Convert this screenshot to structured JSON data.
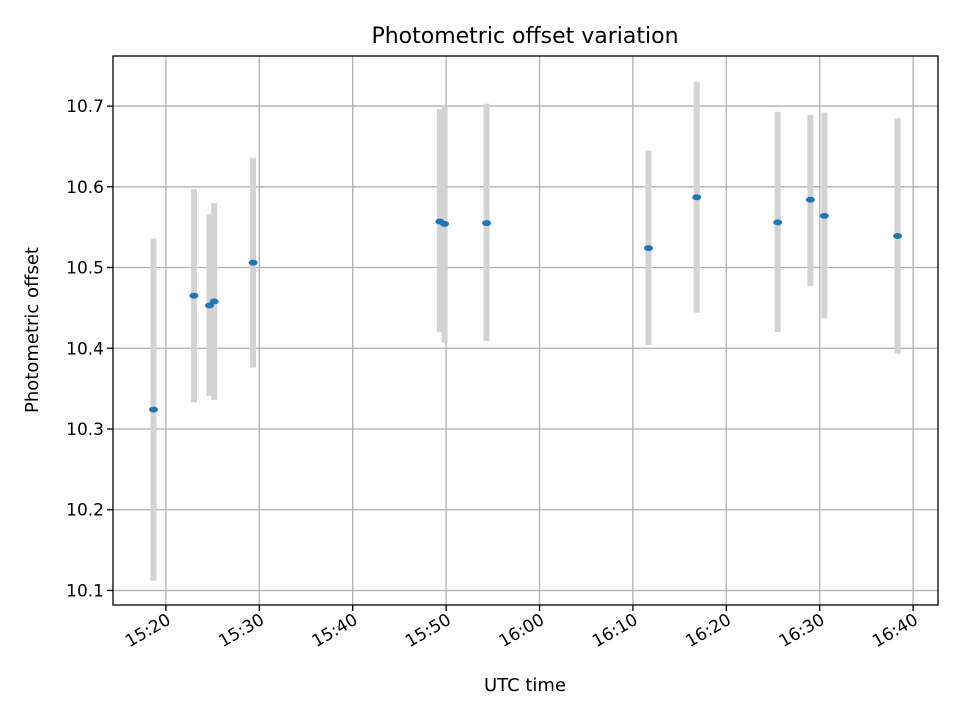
{
  "chart_data": {
    "type": "scatter",
    "title": "Photometric offset variation",
    "xlabel": "UTC time",
    "ylabel": "Photometric offset",
    "xlim": [
      "15:14:20",
      "16:42:40"
    ],
    "ylim": [
      10.082,
      10.762
    ],
    "grid": true,
    "x_ticks": [
      "15:20",
      "15:30",
      "15:40",
      "15:50",
      "16:00",
      "16:10",
      "16:20",
      "16:30",
      "16:40"
    ],
    "y_ticks": [
      "10.1",
      "10.2",
      "10.3",
      "10.4",
      "10.5",
      "10.6",
      "10.7"
    ],
    "colors": {
      "marker": "#1f77b4",
      "errorbar": "#d3d3d3",
      "grid": "#b0b0b0"
    },
    "points": [
      {
        "x": "15:18:40",
        "y": 10.324,
        "yerr_low": 10.112,
        "yerr_high": 10.536
      },
      {
        "x": "15:23:00",
        "y": 10.465,
        "yerr_low": 10.333,
        "yerr_high": 10.597
      },
      {
        "x": "15:24:40",
        "y": 10.453,
        "yerr_low": 10.341,
        "yerr_high": 10.566
      },
      {
        "x": "15:25:10",
        "y": 10.458,
        "yerr_low": 10.336,
        "yerr_high": 10.58
      },
      {
        "x": "15:29:20",
        "y": 10.506,
        "yerr_low": 10.376,
        "yerr_high": 10.636
      },
      {
        "x": "15:49:20",
        "y": 10.557,
        "yerr_low": 10.42,
        "yerr_high": 10.696
      },
      {
        "x": "15:49:50",
        "y": 10.554,
        "yerr_low": 10.407,
        "yerr_high": 10.7
      },
      {
        "x": "15:54:20",
        "y": 10.555,
        "yerr_low": 10.409,
        "yerr_high": 10.703
      },
      {
        "x": "16:11:40",
        "y": 10.524,
        "yerr_low": 10.404,
        "yerr_high": 10.645
      },
      {
        "x": "16:16:50",
        "y": 10.587,
        "yerr_low": 10.444,
        "yerr_high": 10.73
      },
      {
        "x": "16:25:30",
        "y": 10.556,
        "yerr_low": 10.42,
        "yerr_high": 10.693
      },
      {
        "x": "16:29:00",
        "y": 10.584,
        "yerr_low": 10.477,
        "yerr_high": 10.689
      },
      {
        "x": "16:30:30",
        "y": 10.564,
        "yerr_low": 10.437,
        "yerr_high": 10.692
      },
      {
        "x": "16:38:20",
        "y": 10.539,
        "yerr_low": 10.393,
        "yerr_high": 10.685
      }
    ]
  }
}
